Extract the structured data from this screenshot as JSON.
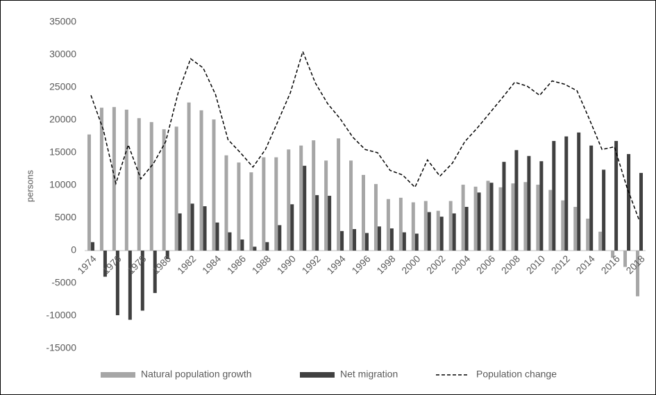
{
  "chart_data": {
    "type": "bar",
    "y_label": "persons",
    "categories": [
      "1974",
      null,
      "1976",
      null,
      "1978",
      null,
      "1980",
      null,
      "1982",
      null,
      "1984",
      null,
      "1986",
      null,
      "1988",
      null,
      "1990",
      null,
      "1992",
      null,
      "1994",
      null,
      "1996",
      null,
      "1998",
      null,
      "2000",
      null,
      "2002",
      null,
      "2004",
      null,
      "2006",
      null,
      "2008",
      null,
      "2010",
      null,
      "2012",
      null,
      "2014",
      null,
      "2016",
      null,
      "2018"
    ],
    "series": [
      {
        "name": "Natural population growth",
        "color": "#a6a6a6",
        "type": "bar",
        "values": [
          17800,
          21900,
          22000,
          21600,
          20300,
          19700,
          18600,
          19000,
          22700,
          21500,
          20100,
          14600,
          13500,
          12000,
          14300,
          14300,
          15500,
          16100,
          16900,
          13800,
          17200,
          13800,
          11600,
          10200,
          7900,
          8100,
          7400,
          7600,
          6100,
          7600,
          10100,
          9800,
          10700,
          9700,
          10300,
          10500,
          10100,
          9300,
          7700,
          6700,
          4900,
          2900,
          -1100,
          -2500,
          -7000
        ]
      },
      {
        "name": "Net migration",
        "color": "#404040",
        "type": "bar",
        "values": [
          1300,
          -4000,
          -9900,
          -10600,
          -9200,
          -6500,
          -1300,
          5700,
          7200,
          6800,
          4300,
          2800,
          1700,
          600,
          1300,
          3900,
          7100,
          13000,
          8500,
          8400,
          3000,
          3300,
          2700,
          3700,
          3400,
          2800,
          2600,
          5900,
          5200,
          5700,
          6700,
          8900,
          10400,
          13600,
          15400,
          14500,
          13700,
          16800,
          17500,
          18100,
          16100,
          12400,
          16800,
          14800,
          11900
        ]
      },
      {
        "name": "Population change",
        "color": "#000000",
        "type": "line",
        "dashed": true,
        "values": [
          23800,
          18500,
          10300,
          16200,
          11000,
          13300,
          16700,
          24200,
          29400,
          28000,
          23900,
          17000,
          15000,
          12800,
          15500,
          19800,
          24200,
          30500,
          25700,
          22500,
          20200,
          17400,
          15500,
          15000,
          12300,
          11600,
          9700,
          13900,
          11400,
          13400,
          16700,
          18800,
          21100,
          23400,
          25800,
          25200,
          23800,
          26000,
          25500,
          24500,
          20100,
          15500,
          15900,
          9700,
          4600
        ]
      }
    ],
    "ylim": [
      -15000,
      35000
    ],
    "yticks": [
      -15000,
      -10000,
      -5000,
      0,
      5000,
      10000,
      15000,
      20000,
      25000,
      30000,
      35000
    ],
    "grid": false
  }
}
